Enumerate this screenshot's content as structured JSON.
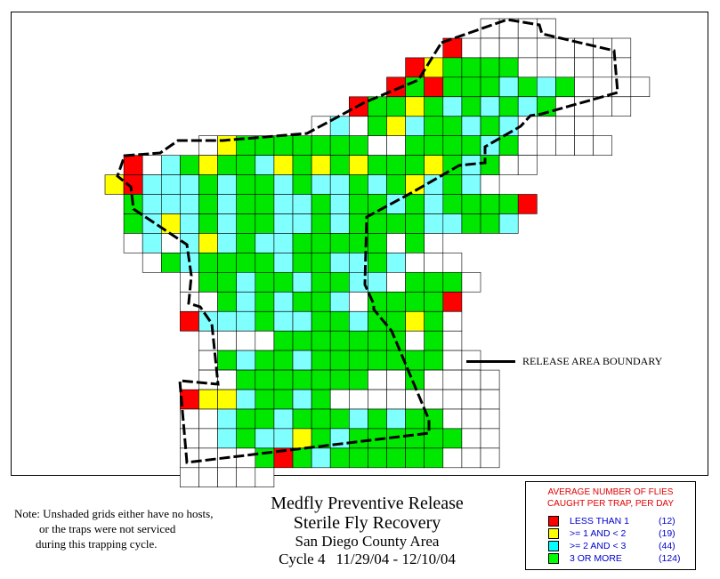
{
  "boundary_label": "RELEASE AREA BOUNDARY",
  "note": {
    "line1": "Note: Unshaded grids either have no hosts,",
    "line2": "or the traps were not serviced",
    "line3": "during this trapping cycle."
  },
  "title": {
    "line1": "Medfly Preventive Release",
    "line2": "Sterile Fly Recovery",
    "line3": "San Diego County Area",
    "cycle": "Cycle 4",
    "dates": "11/29/04 - 12/10/04"
  },
  "legend": {
    "header1": "AVERAGE NUMBER OF FLIES",
    "header2": "CAUGHT PER TRAP, PER DAY",
    "items": [
      {
        "label": "LESS THAN 1",
        "count": "(12)",
        "color": "#ff0000"
      },
      {
        "label": ">= 1 AND < 2",
        "count": "(19)",
        "color": "#ffff00"
      },
      {
        "label": ">= 2 AND < 3",
        "count": "(44)",
        "color": "#00ffff"
      },
      {
        "label": "3 OR MORE",
        "count": "(124)",
        "color": "#00ff00"
      }
    ]
  },
  "colors": {
    "R": "#ff0000",
    "Y": "#ffff00",
    "C": "#80ffff",
    "G": "#00e800",
    "W": "#ffffff"
  }
}
